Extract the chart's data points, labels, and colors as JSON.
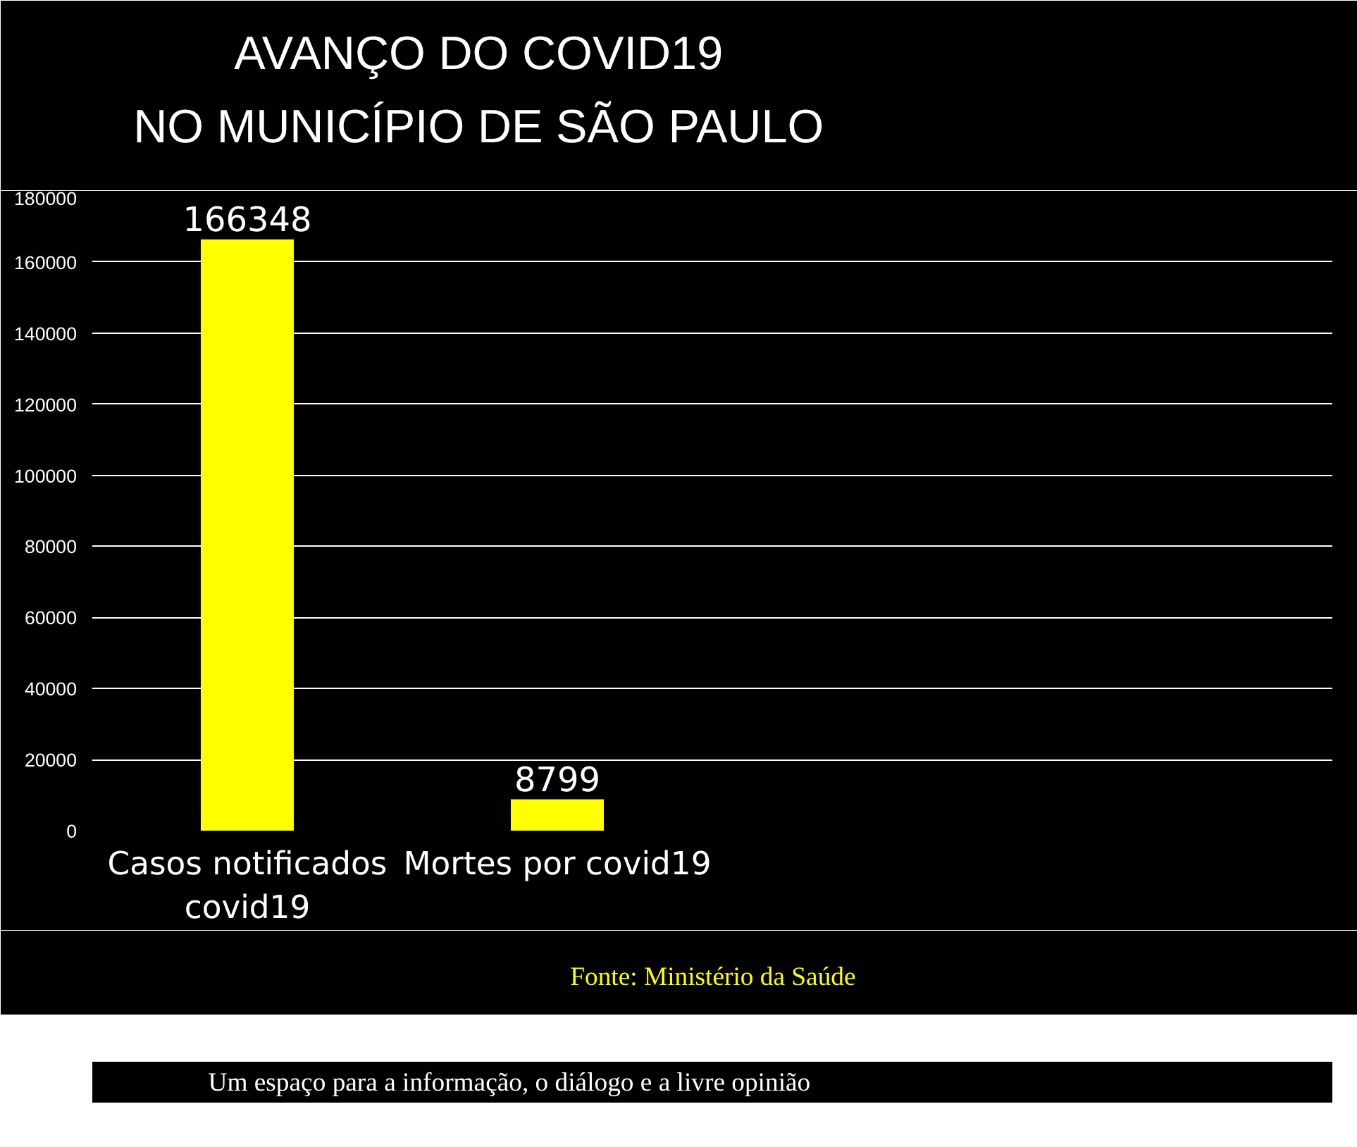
{
  "chart_data": {
    "type": "bar",
    "title": "AVANÇO DO COVID19\nNO MUNICÍPIO DE SÃO PAULO",
    "categories": [
      "Casos notificados\ncovid19",
      "Mortes por covid19",
      null,
      null
    ],
    "values": [
      166348,
      8799,
      null,
      null
    ],
    "color": "#ffff00",
    "ylim": [
      0,
      180000
    ],
    "yticks": [
      0,
      20000,
      40000,
      60000,
      80000,
      100000,
      120000,
      140000,
      160000,
      180000
    ],
    "grid": "y",
    "data_labels": true,
    "annotations": [
      "Fonte: Ministério da Saúde",
      "Um espaço para a informação, o diálogo e a livre opinião"
    ]
  }
}
